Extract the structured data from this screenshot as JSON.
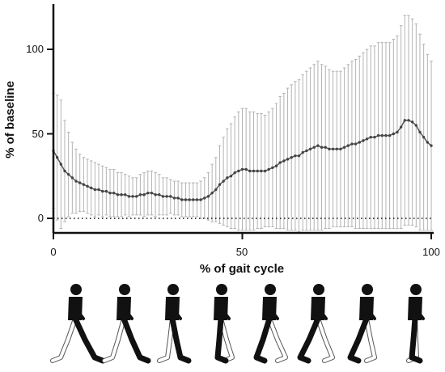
{
  "chart_data": {
    "type": "line",
    "title": "",
    "xlabel": "% of gait cycle",
    "ylabel": "% of baseline",
    "xlim": [
      0,
      100
    ],
    "ylim": [
      -10,
      125
    ],
    "x_ticks": [
      "0",
      "50",
      "100"
    ],
    "y_ticks": [
      "0",
      "50",
      "100"
    ],
    "grid": false,
    "reference_line": {
      "y": 0,
      "style": "dotted"
    },
    "error_bars": "mean ± SD",
    "series": [
      {
        "x": [
          0,
          1,
          2,
          3,
          4,
          5,
          6,
          7,
          8,
          9,
          10,
          11,
          12,
          13,
          14,
          15,
          16,
          17,
          18,
          19,
          20,
          21,
          22,
          23,
          24,
          25,
          26,
          27,
          28,
          29,
          30,
          31,
          32,
          33,
          34,
          35,
          36,
          37,
          38,
          39,
          40,
          41,
          42,
          43,
          44,
          45,
          46,
          47,
          48,
          49,
          50,
          51,
          52,
          53,
          54,
          55,
          56,
          57,
          58,
          59,
          60,
          61,
          62,
          63,
          64,
          65,
          66,
          67,
          68,
          69,
          70,
          71,
          72,
          73,
          74,
          75,
          76,
          77,
          78,
          79,
          80,
          81,
          82,
          83,
          84,
          85,
          86,
          87,
          88,
          89,
          90,
          91,
          92,
          93,
          94,
          95,
          96,
          97,
          98,
          99,
          100
        ],
        "values": [
          40,
          36,
          32,
          28,
          26,
          24,
          22,
          21,
          20,
          19,
          18,
          17,
          17,
          16,
          16,
          15,
          15,
          14,
          14,
          14,
          13,
          13,
          13,
          14,
          14,
          15,
          15,
          14,
          14,
          13,
          13,
          13,
          12,
          12,
          11,
          11,
          11,
          11,
          11,
          11,
          12,
          13,
          15,
          17,
          20,
          22,
          24,
          25,
          27,
          28,
          29,
          29,
          28,
          28,
          28,
          28,
          28,
          29,
          30,
          31,
          33,
          34,
          35,
          36,
          37,
          37,
          39,
          40,
          41,
          42,
          43,
          42,
          42,
          41,
          41,
          41,
          41,
          42,
          43,
          44,
          44,
          45,
          46,
          47,
          48,
          48,
          49,
          49,
          49,
          49,
          50,
          51,
          54,
          58,
          58,
          57,
          55,
          51,
          48,
          45,
          43
        ],
        "sd": [
          34,
          37,
          38,
          30,
          25,
          21,
          19,
          17,
          16,
          16,
          16,
          16,
          15,
          15,
          14,
          14,
          14,
          13,
          13,
          12,
          12,
          11,
          11,
          12,
          13,
          13,
          13,
          13,
          12,
          11,
          11,
          10,
          10,
          10,
          10,
          10,
          10,
          10,
          10,
          11,
          12,
          14,
          17,
          19,
          23,
          26,
          29,
          31,
          33,
          35,
          36,
          36,
          35,
          35,
          34,
          34,
          33,
          34,
          35,
          37,
          39,
          40,
          42,
          43,
          44,
          45,
          46,
          47,
          48,
          49,
          50,
          49,
          48,
          47,
          46,
          46,
          46,
          47,
          48,
          49,
          50,
          51,
          52,
          53,
          54,
          54,
          55,
          55,
          55,
          55,
          56,
          57,
          60,
          62,
          62,
          61,
          60,
          58,
          55,
          52,
          50
        ]
      }
    ]
  },
  "figure": {
    "illustration": "walking-figure-sequence",
    "figure_count": 8
  }
}
